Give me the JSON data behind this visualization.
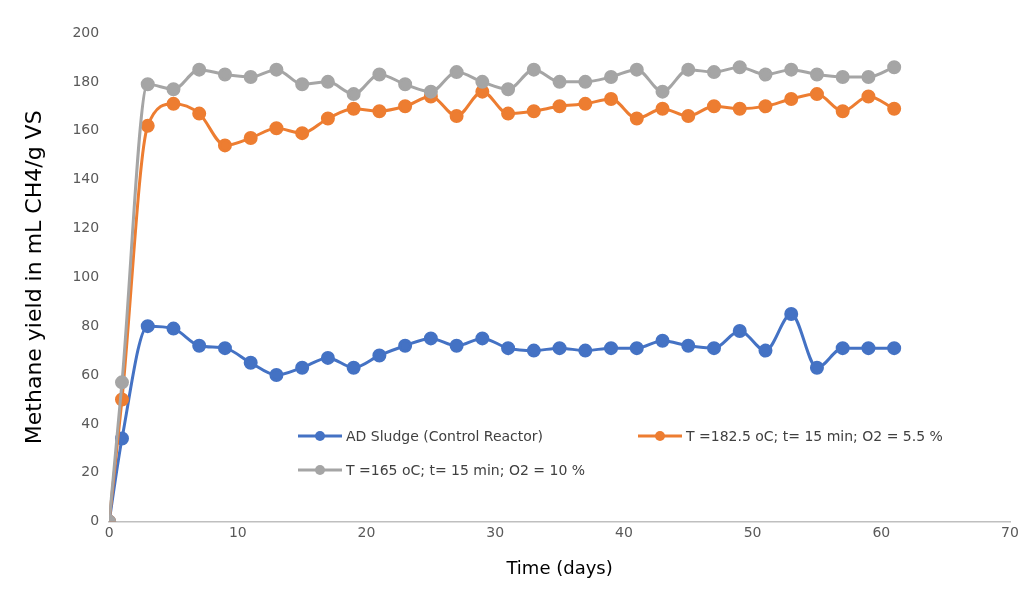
{
  "chart_data": {
    "type": "line",
    "xlabel": "Time (days)",
    "ylabel": "Methane yield in mL CH4/g VS",
    "x": [
      0,
      1,
      3,
      5,
      7,
      9,
      11,
      13,
      15,
      17,
      19,
      21,
      23,
      25,
      27,
      29,
      31,
      33,
      35,
      37,
      39,
      41,
      43,
      45,
      47,
      49,
      51,
      53,
      55,
      57,
      59,
      61
    ],
    "series": [
      {
        "name": "AD Sludge (Control Reactor)",
        "color": "#4472c4",
        "values": [
          0,
          34,
          80,
          79,
          72,
          71,
          65,
          60,
          63,
          67,
          63,
          68,
          72,
          75,
          72,
          75,
          71,
          70,
          71,
          70,
          71,
          71,
          74,
          72,
          71,
          78,
          70,
          85,
          63,
          71,
          71,
          71
        ]
      },
      {
        "name": "T =182.5 oC; t= 15 min; O2 = 5.5 %",
        "color": "#ed7d31",
        "values": [
          0,
          50,
          162,
          171,
          167,
          154,
          157,
          161,
          159,
          165,
          169,
          168,
          170,
          174,
          166,
          176,
          167,
          168,
          170,
          171,
          173,
          165,
          169,
          166,
          170,
          169,
          170,
          173,
          175,
          168,
          174,
          169
        ]
      },
      {
        "name": "T =165 oC; t= 15 min; O2 = 10 %",
        "color": "#a5a5a5",
        "values": [
          0,
          57,
          179,
          177,
          185,
          183,
          182,
          185,
          179,
          180,
          175,
          183,
          179,
          176,
          184,
          180,
          177,
          185,
          180,
          180,
          182,
          185,
          176,
          185,
          184,
          186,
          183,
          185,
          183,
          182,
          182,
          186
        ]
      }
    ],
    "xlim": [
      0,
      70
    ],
    "xticks": [
      0,
      10,
      20,
      30,
      40,
      50,
      60,
      70
    ],
    "ylim": [
      0,
      200
    ],
    "yticks": [
      0,
      20,
      40,
      60,
      80,
      100,
      120,
      140,
      160,
      180,
      200
    ],
    "grid": false,
    "legend": "bottom",
    "marker": "circle",
    "line_style": "solid"
  }
}
